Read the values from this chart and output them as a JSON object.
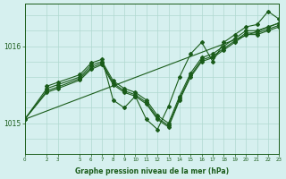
{
  "background_color": "#d6f0ef",
  "grid_color": "#b0d8d0",
  "line_color": "#1a5c1a",
  "title": "Graphe pression niveau de la mer (hPa)",
  "xlim": [
    0,
    23
  ],
  "ylim": [
    1014.6,
    1016.55
  ],
  "yticks": [
    1015,
    1016
  ],
  "xticks": [
    0,
    2,
    3,
    5,
    6,
    7,
    8,
    9,
    10,
    11,
    12,
    13,
    14,
    15,
    16,
    17,
    18,
    19,
    20,
    21,
    22,
    23
  ],
  "hgrid": [
    1014.6,
    1014.8,
    1015.0,
    1015.2,
    1015.4,
    1015.6,
    1015.8,
    1016.0,
    1016.2,
    1016.4
  ],
  "series": [
    {
      "x": [
        0,
        2,
        3,
        5,
        6,
        7,
        8,
        9,
        10,
        11,
        12,
        13,
        14,
        15,
        16,
        17,
        18,
        19,
        20,
        21,
        22,
        23
      ],
      "y": [
        1015.05,
        1015.45,
        1015.5,
        1015.6,
        1015.75,
        1015.8,
        1015.55,
        1015.45,
        1015.4,
        1015.3,
        1015.1,
        1015.0,
        1015.35,
        1015.65,
        1015.85,
        1015.9,
        1016.0,
        1016.1,
        1016.2,
        1016.2,
        1016.25,
        1016.3
      ],
      "marker": "D",
      "markersize": 2.0,
      "linewidth": 0.8
    },
    {
      "x": [
        0,
        2,
        3,
        5,
        6,
        7,
        8,
        9,
        10,
        11,
        12,
        13,
        14,
        15,
        16,
        17,
        18,
        19,
        20,
        21,
        22,
        23
      ],
      "y": [
        1015.05,
        1015.42,
        1015.47,
        1015.58,
        1015.72,
        1015.78,
        1015.52,
        1015.42,
        1015.37,
        1015.27,
        1015.07,
        1014.97,
        1015.32,
        1015.62,
        1015.82,
        1015.87,
        1015.97,
        1016.07,
        1016.17,
        1016.17,
        1016.22,
        1016.27
      ],
      "marker": "D",
      "markersize": 2.0,
      "linewidth": 0.8
    },
    {
      "x": [
        0,
        2,
        3,
        5,
        6,
        7,
        8,
        9,
        10,
        11,
        12,
        13,
        14,
        15,
        16,
        17,
        18,
        19,
        20,
        21,
        22,
        23
      ],
      "y": [
        1015.05,
        1015.4,
        1015.45,
        1015.56,
        1015.7,
        1015.76,
        1015.5,
        1015.4,
        1015.35,
        1015.25,
        1015.05,
        1014.95,
        1015.3,
        1015.6,
        1015.8,
        1015.85,
        1015.95,
        1016.05,
        1016.15,
        1016.15,
        1016.2,
        1016.25
      ],
      "marker": "D",
      "markersize": 2.0,
      "linewidth": 0.8
    },
    {
      "x": [
        2,
        3,
        5,
        6,
        7,
        8,
        9,
        10,
        11,
        12,
        13,
        14,
        15,
        16,
        17,
        18,
        19,
        20,
        21,
        22,
        23
      ],
      "y": [
        1015.48,
        1015.53,
        1015.63,
        1015.78,
        1015.83,
        1015.3,
        1015.2,
        1015.35,
        1015.05,
        1014.92,
        1015.22,
        1015.6,
        1015.9,
        1016.05,
        1015.8,
        1016.05,
        1016.15,
        1016.25,
        1016.28,
        1016.45,
        1016.35
      ],
      "marker": "D",
      "markersize": 2.0,
      "linewidth": 0.8
    }
  ],
  "regression_line": {
    "x": [
      0,
      23
    ],
    "y": [
      1015.05,
      1016.3
    ],
    "linewidth": 0.8
  }
}
